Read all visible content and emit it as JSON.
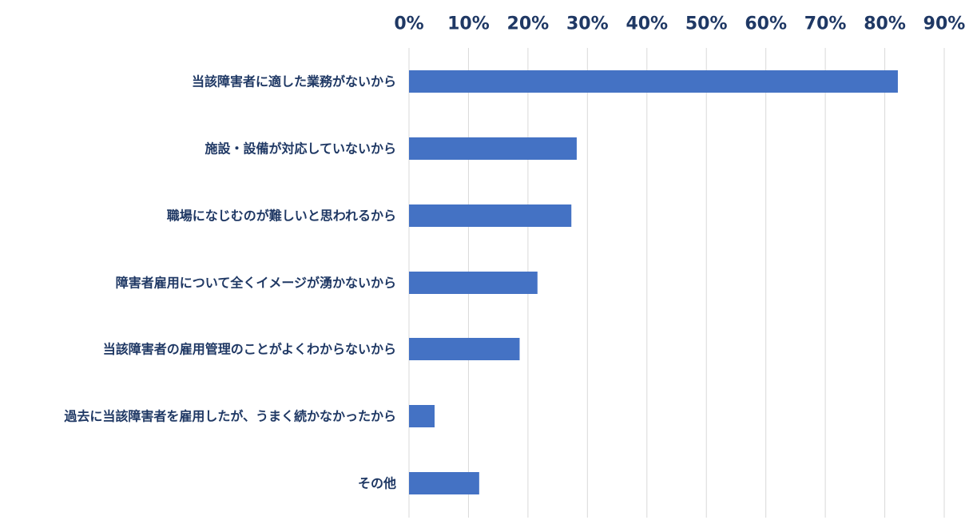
{
  "chart_data": {
    "type": "bar",
    "orientation": "horizontal",
    "categories": [
      "当該障害者に適した業務がないから",
      "施設・設備が対応していないから",
      "職場になじむのが難しいと思われるから",
      "障害者雇用について全くイメージが湧かないから",
      "当該障害者の雇用管理のことがよくわからないから",
      "過去に当該障害者を雇用したが、うまく続かなかったから",
      "その他"
    ],
    "values": [
      82.2,
      28.2,
      27.3,
      21.6,
      18.6,
      4.3,
      11.8
    ],
    "unit": "%",
    "xlim": [
      0,
      90
    ],
    "xticks": [
      "0%",
      "10%",
      "20%",
      "30%",
      "40%",
      "50%",
      "60%",
      "70%",
      "80%",
      "90%"
    ],
    "x_axis_position": "top",
    "grid": true,
    "legend": "none",
    "colors": {
      "bar": "#4472c4",
      "tick_text": "#1f3864",
      "category_text": "#1f3864",
      "grid": "#d9d9d9"
    }
  }
}
